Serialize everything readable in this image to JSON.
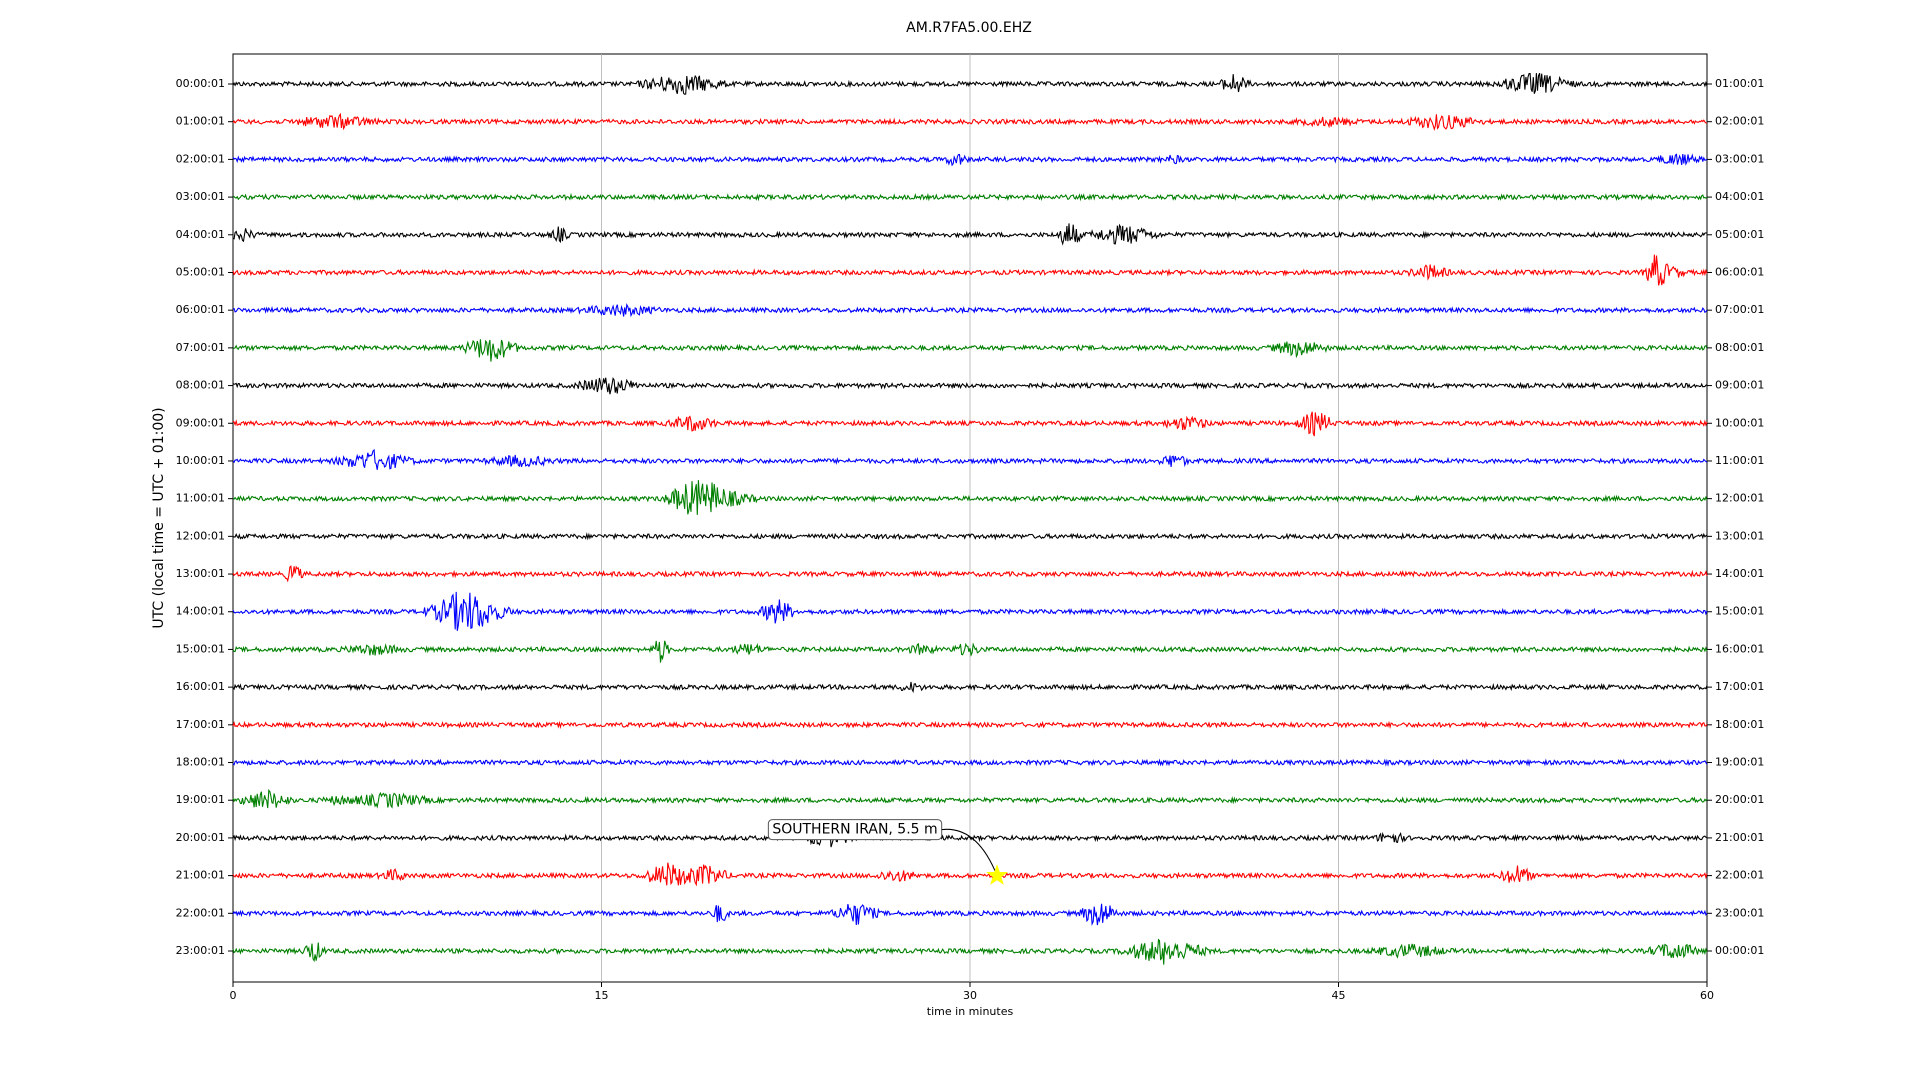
{
  "chart_data": {
    "type": "helicorder",
    "title": "AM.R7FA5.00.EHZ",
    "xlabel": "time in minutes",
    "ylabel": "UTC (local time = UTC + 01:00)",
    "xlim": [
      0,
      60
    ],
    "xticks": [
      0,
      15,
      30,
      45,
      60
    ],
    "grid": true,
    "colors": [
      "#000000",
      "#ff0000",
      "#0000ff",
      "#008000"
    ],
    "left_labels": [
      "00:00:01",
      "01:00:01",
      "02:00:01",
      "03:00:01",
      "04:00:01",
      "05:00:01",
      "06:00:01",
      "07:00:01",
      "08:00:01",
      "09:00:01",
      "10:00:01",
      "11:00:01",
      "12:00:01",
      "13:00:01",
      "14:00:01",
      "15:00:01",
      "16:00:01",
      "17:00:01",
      "18:00:01",
      "19:00:01",
      "20:00:01",
      "21:00:01",
      "22:00:01",
      "23:00:01"
    ],
    "right_labels": [
      "01:00:01",
      "02:00:01",
      "03:00:01",
      "04:00:01",
      "05:00:01",
      "06:00:01",
      "07:00:01",
      "08:00:01",
      "09:00:01",
      "10:00:01",
      "11:00:01",
      "12:00:01",
      "13:00:01",
      "14:00:01",
      "15:00:01",
      "16:00:01",
      "17:00:01",
      "18:00:01",
      "19:00:01",
      "20:00:01",
      "21:00:01",
      "22:00:01",
      "23:00:01",
      "00:00:01"
    ],
    "annotations": [
      {
        "label": "SOUTHERN IRAN, 5.5 m",
        "row": 21,
        "minute": 31.1
      }
    ],
    "marker_color": "#ffff00"
  }
}
